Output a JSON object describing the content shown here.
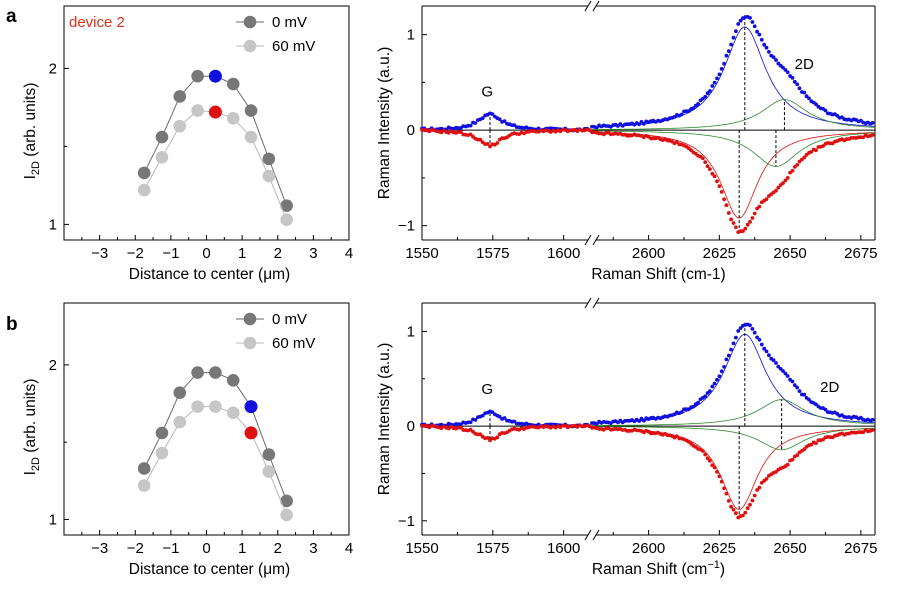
{
  "panels": [
    {
      "letter": "a",
      "annotation": "device 2"
    },
    {
      "letter": "b",
      "annotation": ""
    }
  ],
  "colors": {
    "dark_dot": "#777777",
    "light_dot": "#c6c6c6",
    "blue": "#1010e0",
    "red": "#e01010",
    "green_fit": "#2e8b2e",
    "annotation": "#e0301a"
  },
  "chart_data": [
    {
      "id": "a-left",
      "type": "scatter",
      "xlabel": "Distance to center (μm)",
      "ylabel": "I2D (arb. units)",
      "ylabel_main": "I",
      "ylabel_sub": "2D",
      "ylabel_rest": " (arb. units)",
      "xlim": [
        -4,
        4
      ],
      "ylim": [
        0.9,
        2.4
      ],
      "xticks": [
        -3,
        -2,
        -1,
        0,
        1,
        2,
        3,
        4
      ],
      "yticks": [
        1,
        2
      ],
      "annotation": "device 2",
      "series": [
        {
          "name": "0 mV",
          "color": "#777777",
          "x": [
            -1.75,
            -1.25,
            -0.75,
            -0.25,
            0.25,
            0.75,
            1.25,
            1.75,
            2.25
          ],
          "y": [
            1.33,
            1.56,
            1.82,
            1.95,
            1.95,
            1.9,
            1.73,
            1.42,
            1.12
          ]
        },
        {
          "name": "60 mV",
          "color": "#c6c6c6",
          "x": [
            -1.75,
            -1.25,
            -0.75,
            -0.25,
            0.25,
            0.75,
            1.25,
            1.75,
            2.25
          ],
          "y": [
            1.22,
            1.43,
            1.63,
            1.73,
            1.72,
            1.68,
            1.56,
            1.31,
            1.03
          ]
        }
      ],
      "highlights": [
        {
          "x": 0.25,
          "y": 1.95,
          "color": "#1010e0"
        },
        {
          "x": 0.25,
          "y": 1.72,
          "color": "#e01010"
        }
      ]
    },
    {
      "id": "a-right",
      "type": "line",
      "xlabel": "Raman Shift (cm-1)",
      "ylabel": "Raman Intensity (a.u.)",
      "ylim": [
        -1.15,
        1.3
      ],
      "yticks": [
        -1,
        0,
        1
      ],
      "broken_axis": {
        "left_range": [
          1550,
          1610
        ],
        "right_range": [
          2580,
          2680
        ]
      },
      "xticks": [
        1550,
        1575,
        1600,
        2600,
        2625,
        2650,
        2675
      ],
      "labels": [
        {
          "text": "G",
          "x": 1573,
          "y": 0.35
        },
        {
          "text": "2D",
          "x": 2655,
          "y": 0.64
        }
      ],
      "peaks": {
        "G": {
          "center": 1574,
          "width": 5,
          "amp_blue": 0.17,
          "amp_red": -0.16
        },
        "blue_2D": [
          {
            "center": 2634,
            "width": 9,
            "amp": 1.08
          },
          {
            "center": 2648,
            "width": 10,
            "amp": 0.32
          }
        ],
        "red_2D": [
          {
            "center": 2632,
            "width": 8,
            "amp": -0.92
          },
          {
            "center": 2645,
            "width": 10,
            "amp": -0.38
          }
        ]
      },
      "dashed_at": [
        1574,
        2634,
        2648,
        2632,
        2645
      ]
    },
    {
      "id": "b-left",
      "type": "scatter",
      "xlabel": "Distance to center (μm)",
      "ylabel": "I2D (arb. units)",
      "ylabel_main": "I",
      "ylabel_sub": "2D",
      "ylabel_rest": " (arb. units)",
      "xlim": [
        -4,
        4
      ],
      "ylim": [
        0.9,
        2.4
      ],
      "xticks": [
        -3,
        -2,
        -1,
        0,
        1,
        2,
        3,
        4
      ],
      "yticks": [
        1,
        2
      ],
      "series": [
        {
          "name": "0 mV",
          "color": "#777777",
          "x": [
            -1.75,
            -1.25,
            -0.75,
            -0.25,
            0.25,
            0.75,
            1.25,
            1.75,
            2.25
          ],
          "y": [
            1.33,
            1.56,
            1.82,
            1.95,
            1.95,
            1.9,
            1.73,
            1.42,
            1.12
          ]
        },
        {
          "name": "60 mV",
          "color": "#c6c6c6",
          "x": [
            -1.75,
            -1.25,
            -0.75,
            -0.25,
            0.25,
            0.75,
            1.25,
            1.75,
            2.25
          ],
          "y": [
            1.22,
            1.43,
            1.63,
            1.73,
            1.73,
            1.69,
            1.56,
            1.31,
            1.03
          ]
        }
      ],
      "highlights": [
        {
          "x": 1.25,
          "y": 1.73,
          "color": "#1010e0"
        },
        {
          "x": 1.25,
          "y": 1.56,
          "color": "#e01010"
        }
      ]
    },
    {
      "id": "b-right",
      "type": "line",
      "xlabel": "Raman Shift (cm−1)",
      "xlabel_main": "Raman Shift (cm",
      "xlabel_sup": "−1",
      "xlabel_end": ")",
      "ylabel": "Raman Intensity (a.u.)",
      "ylim": [
        -1.15,
        1.3
      ],
      "yticks": [
        -1,
        0,
        1
      ],
      "broken_axis": {
        "left_range": [
          1550,
          1610
        ],
        "right_range": [
          2580,
          2680
        ]
      },
      "xticks": [
        1550,
        1575,
        1600,
        2600,
        2625,
        2650,
        2675
      ],
      "labels": [
        {
          "text": "G",
          "x": 1573,
          "y": 0.34
        },
        {
          "text": "2D",
          "x": 2664,
          "y": 0.36
        }
      ],
      "peaks": {
        "G": {
          "center": 1574,
          "width": 5,
          "amp_blue": 0.15,
          "amp_red": -0.14
        },
        "blue_2D": [
          {
            "center": 2634,
            "width": 9,
            "amp": 0.97
          },
          {
            "center": 2647,
            "width": 10,
            "amp": 0.28
          }
        ],
        "red_2D": [
          {
            "center": 2632,
            "width": 8,
            "amp": -0.88
          },
          {
            "center": 2647,
            "width": 10,
            "amp": -0.25
          }
        ]
      },
      "dashed_at": [
        1574,
        2634,
        2647,
        2632
      ]
    }
  ]
}
